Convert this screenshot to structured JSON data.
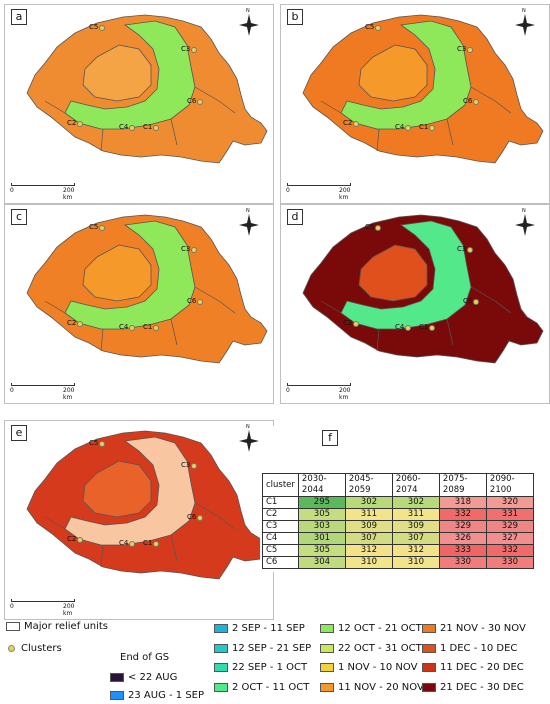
{
  "panels": [
    {
      "label": "a"
    },
    {
      "label": "b"
    },
    {
      "label": "c"
    },
    {
      "label": "d"
    },
    {
      "label": "e"
    }
  ],
  "table_panel_label": "f",
  "clusters": [
    "C1",
    "C2",
    "C3",
    "C4",
    "C5",
    "C6"
  ],
  "scale": {
    "start": "0",
    "end": "200 km"
  },
  "north_label": "N",
  "table": {
    "headers": [
      "cluster",
      "2030-2044",
      "2045-2059",
      "2060-2074",
      "2075-2089",
      "2090-2100"
    ],
    "rows": [
      {
        "cluster": "C1",
        "values": [
          "295",
          "302",
          "302",
          "318",
          "320"
        ]
      },
      {
        "cluster": "C2",
        "values": [
          "305",
          "311",
          "311",
          "332",
          "331"
        ]
      },
      {
        "cluster": "C3",
        "values": [
          "303",
          "309",
          "309",
          "329",
          "329"
        ]
      },
      {
        "cluster": "C4",
        "values": [
          "301",
          "307",
          "307",
          "326",
          "327"
        ]
      },
      {
        "cluster": "C5",
        "values": [
          "305",
          "312",
          "312",
          "333",
          "332"
        ]
      },
      {
        "cluster": "C6",
        "values": [
          "304",
          "310",
          "310",
          "330",
          "330"
        ]
      }
    ],
    "cell_colors": [
      [
        "#5cb85c",
        "#b7d97a",
        "#b7d97a",
        "#f29a94",
        "#f29a94"
      ],
      [
        "#c4dd80",
        "#f1e48a",
        "#f1e48a",
        "#f06a6a",
        "#f07070"
      ],
      [
        "#b9d97c",
        "#e0df85",
        "#e0df85",
        "#f08585",
        "#f08585"
      ],
      [
        "#b2d67a",
        "#d4dc82",
        "#d4dc82",
        "#f29090",
        "#f28e8e"
      ],
      [
        "#c4dd80",
        "#f4e28a",
        "#f4e28a",
        "#ef6565",
        "#f06a6a"
      ],
      [
        "#bfdb7e",
        "#f1e48a",
        "#f1e48a",
        "#f07c7c",
        "#f07c7c"
      ]
    ]
  },
  "legend": {
    "relief_label": "Major relief units",
    "clusters_label": "Clusters",
    "end_of_gs_title": "End of GS",
    "classes": [
      {
        "label": "< 22 AUG",
        "color": "#2a1238"
      },
      {
        "label": "23 AUG - 1 SEP",
        "color": "#1e90ff"
      },
      {
        "label": "2 SEP - 11 SEP",
        "color": "#1fb3d9"
      },
      {
        "label": "12 SEP - 21 SEP",
        "color": "#23c9c9"
      },
      {
        "label": "22 SEP - 1 OCT",
        "color": "#2fdcae"
      },
      {
        "label": "2 OCT - 11 OCT",
        "color": "#53e88a"
      },
      {
        "label": "12 OCT - 21 OCT",
        "color": "#8ee85a"
      },
      {
        "label": "22 OCT - 31 OCT",
        "color": "#c8e85a"
      },
      {
        "label": "1 NOV - 10 NOV",
        "color": "#f4d23c"
      },
      {
        "label": "11 NOV - 20 NOV",
        "color": "#f59a2a"
      },
      {
        "label": "21 NOV - 30 NOV",
        "color": "#ef7a22"
      },
      {
        "label": "1 DEC - 10 DEC",
        "color": "#e0501c"
      },
      {
        "label": "11 DEC - 20 DEC",
        "color": "#cc3218"
      },
      {
        "label": "21 DEC - 30 DEC",
        "color": "#7a0a0a"
      }
    ]
  },
  "panel_colors": {
    "a": {
      "outside": "#ef8c32",
      "carpathians": "#8ee85a",
      "basin": "#f4a444"
    },
    "b": {
      "outside": "#ef7a22",
      "carpathians": "#8ee85a",
      "basin": "#f59a2a"
    },
    "c": {
      "outside": "#ef8026",
      "carpathians": "#8ee85a",
      "basin": "#f59a2a"
    },
    "d": {
      "outside": "#7a0a0a",
      "carpathians": "#53e88a",
      "basin": "#e0501c"
    },
    "e": {
      "outside": "#d63a1c",
      "carpathians": "#f8c6a0",
      "basin": "#e8622a"
    }
  }
}
